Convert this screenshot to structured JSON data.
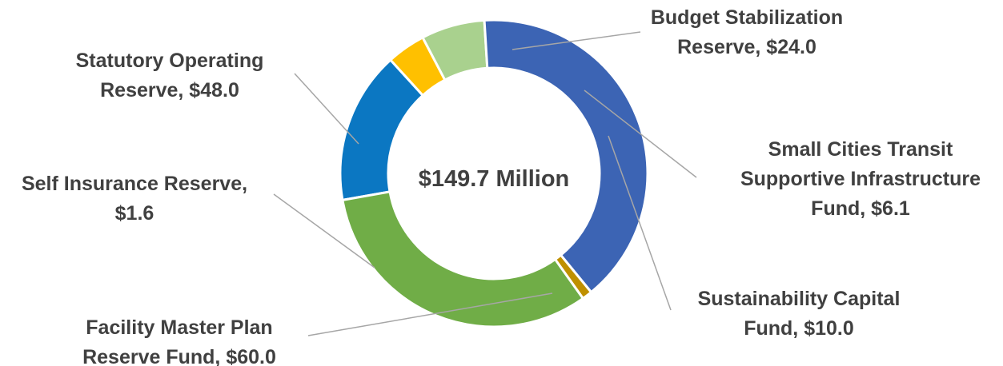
{
  "chart_data": {
    "type": "pie",
    "variant": "donut",
    "center_label": "$149.7 Million",
    "slices": [
      {
        "label_lines": [
          "Budget Stabilization",
          "Reserve, $24.0"
        ],
        "value": 24.0,
        "color": "#0b77c2"
      },
      {
        "label_lines": [
          "Small Cities Transit",
          "Supportive Infrastructure",
          "Fund, $6.1"
        ],
        "value": 6.1,
        "color": "#ffc000"
      },
      {
        "label_lines": [
          "Sustainability Capital",
          "Fund, $10.0"
        ],
        "value": 10.0,
        "color": "#a9d18e"
      },
      {
        "label_lines": [
          "Facility Master Plan",
          "Reserve Fund, $60.0"
        ],
        "value": 60.0,
        "color": "#3c64b4"
      },
      {
        "label_lines": [
          "Self Insurance Reserve,",
          "$1.6"
        ],
        "value": 1.6,
        "color": "#bf9000"
      },
      {
        "label_lines": [
          "Statutory Operating",
          "Reserve, $48.0"
        ],
        "value": 48.0,
        "color": "#70ad47"
      }
    ],
    "legend": "none"
  }
}
